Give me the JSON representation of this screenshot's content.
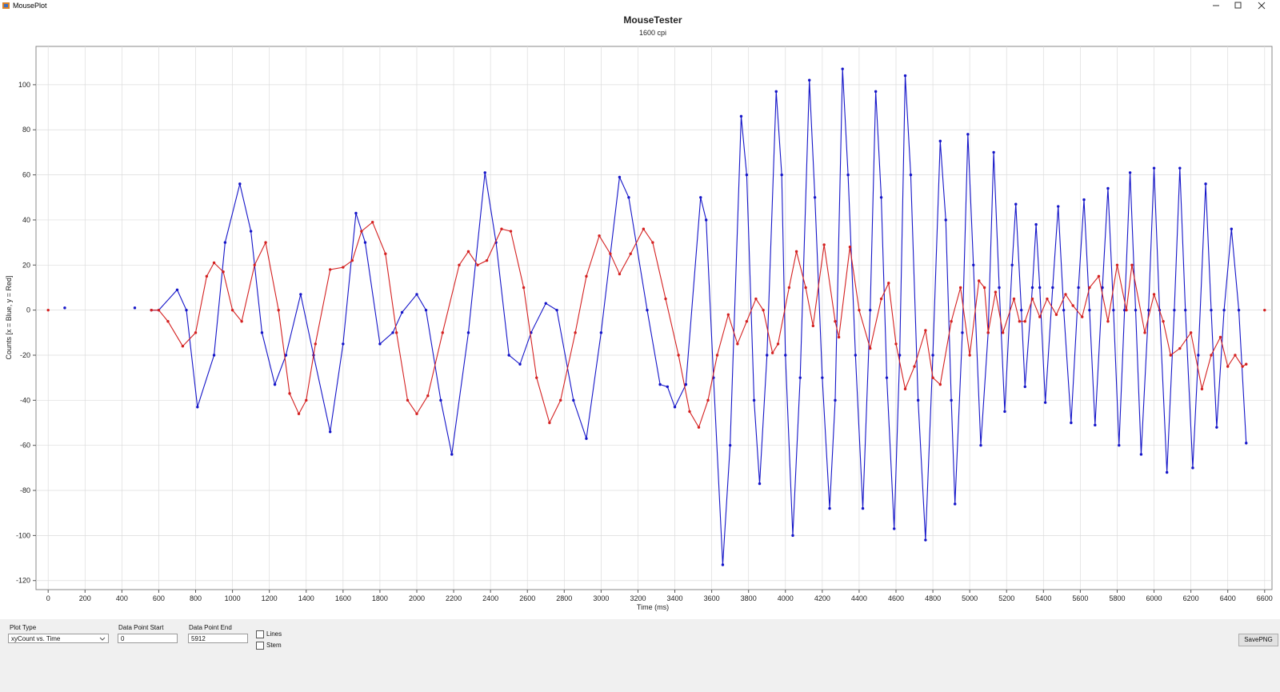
{
  "window": {
    "title": "MousePlot"
  },
  "chart_data": {
    "type": "line",
    "title": "MouseTester",
    "subtitle": "1600 cpi",
    "x_label": "Time (ms)",
    "y_label": "Counts [x = Blue, y = Red]",
    "xlim": [
      -66,
      6640
    ],
    "ylim": [
      -124,
      117
    ],
    "xticks": [
      0,
      200,
      400,
      600,
      800,
      1000,
      1200,
      1400,
      1600,
      1800,
      2000,
      2200,
      2400,
      2600,
      2800,
      3000,
      3200,
      3400,
      3600,
      3800,
      4000,
      4200,
      4400,
      4600,
      4800,
      5000,
      5200,
      5400,
      5600,
      5800,
      6000,
      6200,
      6400,
      6600
    ],
    "yticks": [
      -120,
      -100,
      -80,
      -60,
      -40,
      -20,
      0,
      20,
      40,
      60,
      80,
      100
    ],
    "grid": true,
    "series": [
      {
        "color": "#1414c8",
        "x": [
          90,
          300,
          470,
          520,
          560,
          600,
          700,
          750,
          810,
          900,
          960,
          1040,
          1100,
          1160,
          1230,
          1290,
          1370,
          1440,
          1530,
          1600,
          1670,
          1720,
          1800,
          1870,
          1920,
          2000,
          2050,
          2130,
          2190,
          2280,
          2370,
          2430,
          2500,
          2560,
          2620,
          2700,
          2760,
          2850,
          2920,
          3000,
          3100,
          3150,
          3250,
          3320,
          3360,
          3400,
          3460,
          3540,
          3570,
          3610,
          3660,
          3700,
          3760,
          3790,
          3830,
          3860,
          3900,
          3950,
          3980,
          4000,
          4040,
          4080,
          4130,
          4160,
          4200,
          4240,
          4270,
          4310,
          4340,
          4380,
          4420,
          4460,
          4490,
          4520,
          4550,
          4590,
          4620,
          4650,
          4680,
          4720,
          4760,
          4800,
          4840,
          4870,
          4900,
          4920,
          4960,
          4990,
          5020,
          5060,
          5100,
          5130,
          5160,
          5190,
          5230,
          5250,
          5280,
          5300,
          5340,
          5360,
          5380,
          5410,
          5450,
          5480,
          5510,
          5550,
          5590,
          5620,
          5650,
          5680,
          5720,
          5750,
          5780,
          5810,
          5840,
          5870,
          5900,
          5930,
          5970,
          6000,
          6030,
          6070,
          6110,
          6140,
          6170,
          6210,
          6240,
          6280,
          6310,
          6340,
          6380,
          6420,
          6460,
          6500
        ],
        "values": [
          1,
          null,
          1,
          null,
          0,
          0,
          9,
          0,
          -43,
          -20,
          30,
          56,
          35,
          -10,
          -33,
          -20,
          7,
          -20,
          -54,
          -15,
          43,
          30,
          -15,
          -10,
          -1,
          7,
          0,
          -40,
          -64,
          -10,
          61,
          30,
          -20,
          -24,
          -10,
          3,
          0,
          -40,
          -57,
          -10,
          59,
          50,
          0,
          -33,
          -34,
          -43,
          -33,
          50,
          40,
          -30,
          -113,
          -60,
          86,
          60,
          -40,
          -77,
          -20,
          97,
          60,
          -20,
          -100,
          -30,
          102,
          50,
          -30,
          -88,
          -40,
          107,
          60,
          -20,
          -88,
          0,
          97,
          50,
          -30,
          -97,
          -20,
          104,
          60,
          -40,
          -102,
          -20,
          75,
          40,
          -40,
          -86,
          -10,
          78,
          20,
          -60,
          -10,
          70,
          10,
          -45,
          20,
          47,
          0,
          -34,
          10,
          38,
          10,
          -41,
          10,
          46,
          0,
          -50,
          10,
          49,
          0,
          -51,
          10,
          54,
          0,
          -60,
          0,
          61,
          0,
          -64,
          0,
          63,
          0,
          -72,
          0,
          63,
          0,
          -70,
          -20,
          56,
          0,
          -52,
          0,
          36,
          0,
          -59
        ]
      },
      {
        "color": "#d42020",
        "x": [
          0,
          30,
          560,
          600,
          650,
          730,
          800,
          860,
          900,
          950,
          1000,
          1050,
          1120,
          1180,
          1250,
          1310,
          1360,
          1400,
          1450,
          1530,
          1600,
          1650,
          1700,
          1760,
          1830,
          1890,
          1950,
          2000,
          2060,
          2140,
          2230,
          2280,
          2330,
          2380,
          2460,
          2510,
          2580,
          2650,
          2720,
          2780,
          2860,
          2920,
          2990,
          3050,
          3100,
          3160,
          3230,
          3280,
          3350,
          3420,
          3480,
          3530,
          3580,
          3630,
          3690,
          3740,
          3790,
          3840,
          3880,
          3930,
          3960,
          4020,
          4060,
          4110,
          4150,
          4210,
          4270,
          4290,
          4350,
          4400,
          4460,
          4520,
          4560,
          4600,
          4650,
          4700,
          4760,
          4800,
          4840,
          4900,
          4950,
          5000,
          5050,
          5080,
          5100,
          5140,
          5180,
          5240,
          5270,
          5300,
          5340,
          5380,
          5420,
          5470,
          5520,
          5560,
          5610,
          5650,
          5700,
          5750,
          5800,
          5850,
          5880,
          5950,
          6000,
          6050,
          6090,
          6140,
          6200,
          6260,
          6310,
          6360,
          6400,
          6440,
          6480,
          6500,
          6550,
          6600
        ],
        "values": [
          0,
          null,
          0,
          0,
          -5,
          -16,
          -10,
          15,
          21,
          17,
          0,
          -5,
          20,
          30,
          0,
          -37,
          -46,
          -40,
          -15,
          18,
          19,
          22,
          35,
          39,
          25,
          -10,
          -40,
          -46,
          -38,
          -10,
          20,
          26,
          20,
          22,
          36,
          35,
          10,
          -30,
          -50,
          -40,
          -10,
          15,
          33,
          25,
          16,
          25,
          36,
          30,
          5,
          -20,
          -45,
          -52,
          -40,
          -20,
          -2,
          -15,
          -5,
          5,
          0,
          -19,
          -15,
          10,
          26,
          10,
          -7,
          29,
          -5,
          -12,
          28,
          0,
          -17,
          5,
          12,
          -15,
          -35,
          -25,
          -9,
          -30,
          -33,
          -5,
          10,
          -20,
          13,
          10,
          -10,
          8,
          -10,
          5,
          -5,
          -5,
          5,
          -3,
          5,
          -2,
          7,
          2,
          -3,
          10,
          15,
          -5,
          20,
          0,
          20,
          -10,
          7,
          -5,
          -20,
          -17,
          -10,
          -35,
          -20,
          -12,
          -25,
          -20,
          -25,
          -24,
          null,
          0
        ]
      }
    ]
  },
  "controls": {
    "plot_type": {
      "label": "Plot Type",
      "value": "xyCount vs. Time"
    },
    "start": {
      "label": "Data Point Start",
      "value": "0"
    },
    "end": {
      "label": "Data Point End",
      "value": "5912"
    },
    "checkboxes": [
      "Lines",
      "Stem"
    ],
    "button": "SavePNG"
  }
}
